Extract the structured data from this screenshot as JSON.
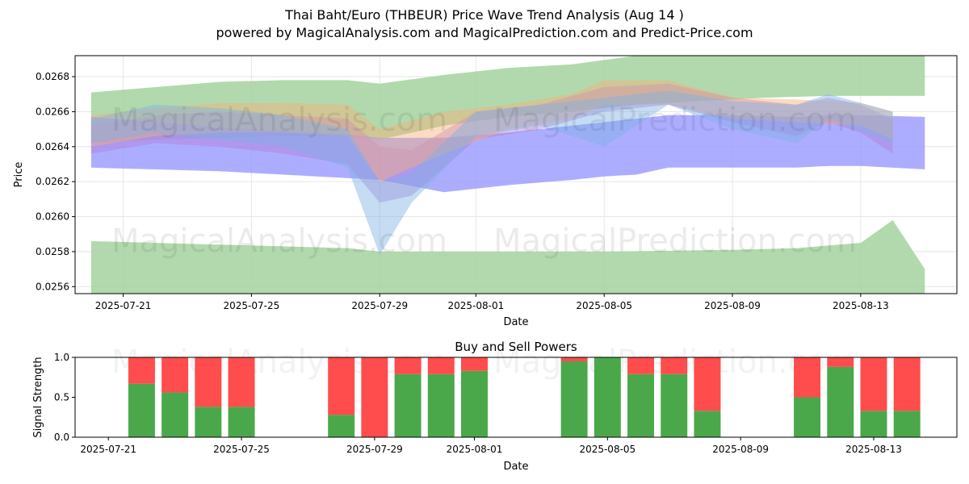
{
  "header": {
    "title": "Thai Baht/Euro (THBEUR) Price Wave Trend Analysis (Aug 14 )",
    "subtitle": "powered by MagicalAnalysis.com and MagicalPrediction.com and Predict-Price.com"
  },
  "watermarks": [
    "MagicalAnalysis.com",
    "MagicalPrediction.com"
  ],
  "colors": {
    "buy": "#4aa84a",
    "sell": "#ff4c4c",
    "green_band": "#a4d29f",
    "blue_band": "#9999ff"
  },
  "chart_data": [
    {
      "type": "area",
      "xlabel": "Date",
      "ylabel": "Price",
      "ylim": [
        0.02556,
        0.02692
      ],
      "yticks": [
        "0.0256",
        "0.0258",
        "0.0260",
        "0.0262",
        "0.0264",
        "0.0266",
        "0.0268"
      ],
      "xticks": [
        "2025-07-21",
        "2025-07-25",
        "2025-07-29",
        "2025-08-01",
        "2025-08-05",
        "2025-08-09",
        "2025-08-13"
      ],
      "x_range": [
        "2025-07-19T12:00",
        "2025-08-16T00:00"
      ],
      "grid": true,
      "bands": [
        {
          "color": "green",
          "x": [
            "2025-07-20",
            "2025-07-22",
            "2025-07-24",
            "2025-07-26",
            "2025-07-28",
            "2025-07-29",
            "2025-07-31",
            "2025-08-02",
            "2025-08-04",
            "2025-08-06",
            "2025-08-08",
            "2025-08-10",
            "2025-08-12",
            "2025-08-14",
            "2025-08-15"
          ],
          "upper": [
            0.02671,
            0.02674,
            0.02677,
            0.02678,
            0.02678,
            0.02676,
            0.02681,
            0.02685,
            0.02687,
            0.02692,
            0.02692,
            0.02692,
            0.02692,
            0.02692,
            0.02692
          ],
          "lower": [
            0.02642,
            0.02644,
            0.02645,
            0.02646,
            0.02646,
            0.02644,
            0.02652,
            0.02657,
            0.0266,
            0.02664,
            0.02666,
            0.02668,
            0.02669,
            0.02669,
            0.02669
          ]
        },
        {
          "color": "green",
          "x": [
            "2025-07-20",
            "2025-07-24",
            "2025-07-28",
            "2025-07-29",
            "2025-08-01",
            "2025-08-05",
            "2025-08-09",
            "2025-08-11",
            "2025-08-13",
            "2025-08-14",
            "2025-08-15"
          ],
          "upper": [
            0.02586,
            0.02584,
            0.02582,
            0.0258,
            0.0258,
            0.0258,
            0.02581,
            0.02582,
            0.02585,
            0.02598,
            0.0257
          ],
          "lower": [
            0.02556,
            0.02556,
            0.02556,
            0.02556,
            0.02556,
            0.02556,
            0.02556,
            0.02556,
            0.02556,
            0.02556,
            0.02556
          ]
        },
        {
          "color": "blue",
          "x": [
            "2025-07-20",
            "2025-07-22",
            "2025-07-24",
            "2025-07-26",
            "2025-07-28",
            "2025-07-29",
            "2025-07-31",
            "2025-08-02",
            "2025-08-04",
            "2025-08-05",
            "2025-08-06",
            "2025-08-07",
            "2025-08-09",
            "2025-08-11",
            "2025-08-12",
            "2025-08-13",
            "2025-08-15"
          ],
          "upper": [
            0.02657,
            0.02654,
            0.02651,
            0.02649,
            0.02647,
            0.02645,
            0.02645,
            0.02648,
            0.02652,
            0.02654,
            0.02656,
            0.02658,
            0.02658,
            0.02657,
            0.02658,
            0.02658,
            0.02657
          ],
          "lower": [
            0.02628,
            0.02627,
            0.02626,
            0.02624,
            0.02622,
            0.02621,
            0.02614,
            0.02618,
            0.02621,
            0.02623,
            0.02624,
            0.02628,
            0.02628,
            0.02628,
            0.02629,
            0.02629,
            0.02627
          ]
        },
        {
          "color": "purple",
          "x": [
            "2025-07-20",
            "2025-07-22",
            "2025-07-24",
            "2025-07-26",
            "2025-07-28",
            "2025-07-29",
            "2025-07-30",
            "2025-08-01",
            "2025-08-03",
            "2025-08-05",
            "2025-08-07",
            "2025-08-09",
            "2025-08-11",
            "2025-08-12",
            "2025-08-13",
            "2025-08-14"
          ],
          "upper": [
            0.02652,
            0.02658,
            0.0266,
            0.02658,
            0.02656,
            0.0264,
            0.02638,
            0.0266,
            0.02664,
            0.02674,
            0.02676,
            0.02668,
            0.02664,
            0.02668,
            0.02664,
            0.02656
          ],
          "lower": [
            0.02636,
            0.02642,
            0.0264,
            0.02636,
            0.0263,
            0.02608,
            0.02612,
            0.02644,
            0.0265,
            0.0266,
            0.02664,
            0.02654,
            0.02646,
            0.02654,
            0.02648,
            0.02636
          ]
        },
        {
          "color": "orange",
          "x": [
            "2025-07-20",
            "2025-07-22",
            "2025-07-24",
            "2025-07-26",
            "2025-07-28",
            "2025-07-29",
            "2025-07-31",
            "2025-08-02",
            "2025-08-04",
            "2025-08-05",
            "2025-08-07",
            "2025-08-09",
            "2025-08-11",
            "2025-08-13",
            "2025-08-14"
          ],
          "upper": [
            0.02658,
            0.02662,
            0.02665,
            0.02665,
            0.02664,
            0.0265,
            0.0266,
            0.02664,
            0.0267,
            0.02678,
            0.02678,
            0.02668,
            0.02667,
            0.02665,
            0.0266
          ],
          "lower": [
            0.0264,
            0.02646,
            0.02648,
            0.02648,
            0.02646,
            0.0262,
            0.02636,
            0.0265,
            0.02656,
            0.02664,
            0.02664,
            0.02656,
            0.02654,
            0.02652,
            0.02644
          ]
        },
        {
          "color": "lightblue",
          "x": [
            "2025-07-20",
            "2025-07-22",
            "2025-07-24",
            "2025-07-26",
            "2025-07-28",
            "2025-07-29",
            "2025-07-30",
            "2025-08-01",
            "2025-08-03",
            "2025-08-05",
            "2025-08-07",
            "2025-08-09",
            "2025-08-11",
            "2025-08-12",
            "2025-08-14"
          ],
          "upper": [
            0.02656,
            0.02664,
            0.02662,
            0.02658,
            0.0265,
            0.0262,
            0.02625,
            0.0266,
            0.02664,
            0.02668,
            0.02672,
            0.02666,
            0.02664,
            0.0267,
            0.0266
          ],
          "lower": [
            0.02642,
            0.02648,
            0.02644,
            0.0264,
            0.02628,
            0.02578,
            0.02608,
            0.02646,
            0.02652,
            0.0264,
            0.02664,
            0.0265,
            0.02642,
            0.02656,
            0.02642
          ]
        }
      ]
    },
    {
      "type": "bar",
      "title": "Buy and Sell Powers",
      "xlabel": "Date",
      "ylabel": "Signal Strength",
      "ylim": [
        0,
        1
      ],
      "yticks": [
        "0.0",
        "0.5",
        "1.0"
      ],
      "xticks": [
        "2025-07-21",
        "2025-07-25",
        "2025-07-29",
        "2025-08-01",
        "2025-08-05",
        "2025-08-09",
        "2025-08-13"
      ],
      "x_range": [
        "2025-07-20T00:00",
        "2025-08-15T12:00"
      ],
      "categories": [
        "2025-07-22",
        "2025-07-23",
        "2025-07-24",
        "2025-07-25",
        "2025-07-28",
        "2025-07-29",
        "2025-07-30",
        "2025-07-31",
        "2025-08-01",
        "2025-08-04",
        "2025-08-05",
        "2025-08-06",
        "2025-08-07",
        "2025-08-08",
        "2025-08-11",
        "2025-08-12",
        "2025-08-13",
        "2025-08-14"
      ],
      "series": [
        {
          "name": "Buy",
          "values": [
            0.67,
            0.56,
            0.38,
            0.38,
            0.28,
            0.0,
            0.79,
            0.79,
            0.83,
            0.95,
            1.0,
            0.79,
            0.79,
            0.33,
            0.5,
            0.88,
            0.33,
            0.33
          ]
        },
        {
          "name": "Sell",
          "values": [
            0.33,
            0.44,
            0.62,
            0.62,
            0.72,
            1.0,
            0.21,
            0.21,
            0.17,
            0.05,
            0.0,
            0.21,
            0.21,
            0.67,
            0.5,
            0.12,
            0.67,
            0.67
          ]
        }
      ]
    }
  ]
}
